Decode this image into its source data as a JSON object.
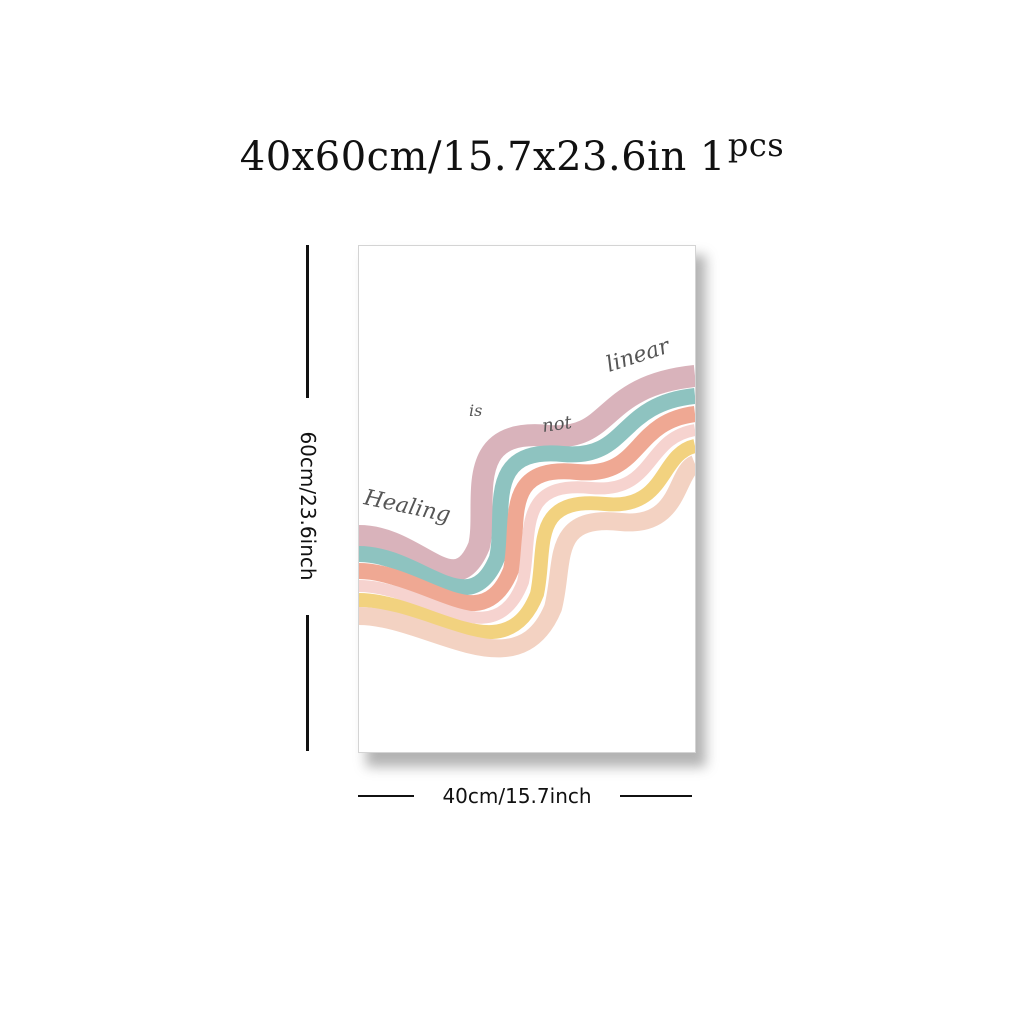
{
  "title": {
    "size": "40x60cm/15.7x23.6in",
    "qty": "1",
    "unit": "pcs"
  },
  "poster": {
    "words": [
      "Healing",
      "is",
      "not",
      "linear"
    ],
    "stripe_colors": [
      "#d9b3bb",
      "#8ec3c0",
      "#efa893",
      "#f6d3cf",
      "#f2d27f",
      "#f3d2c2"
    ]
  },
  "dimensions": {
    "height_label": "60cm/23.6inch",
    "width_label": "40cm/15.7inch"
  }
}
